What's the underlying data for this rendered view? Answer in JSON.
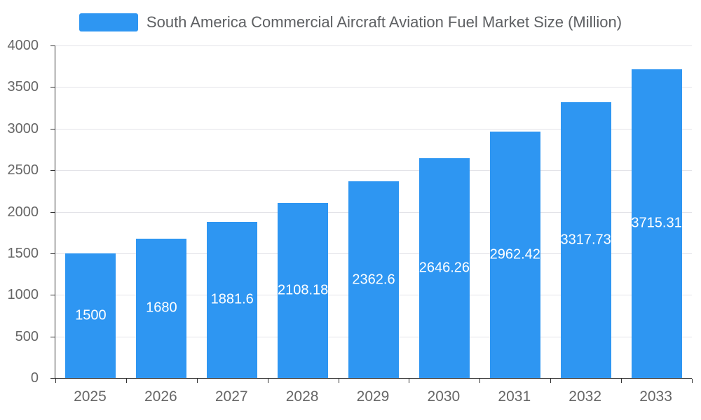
{
  "chart_data": {
    "type": "bar",
    "title": "South America Commercial Aircraft Aviation Fuel Market Size (Million)",
    "categories": [
      "2025",
      "2026",
      "2027",
      "2028",
      "2029",
      "2030",
      "2031",
      "2032",
      "2033"
    ],
    "values": [
      1500,
      1680,
      1881.6,
      2108.18,
      2362.6,
      2646.26,
      2962.42,
      3317.73,
      3715.31
    ],
    "value_labels": [
      "1500",
      "1680",
      "1881.6",
      "2108.18",
      "2362.6",
      "2646.26",
      "2962.42",
      "3317.73",
      "3715.31"
    ],
    "xlabel": "",
    "ylabel": "",
    "ylim": [
      0,
      4000
    ],
    "ytick_step": 500,
    "ytick_labels": [
      "0",
      "500",
      "1000",
      "1500",
      "2000",
      "2500",
      "3000",
      "3500",
      "4000"
    ],
    "grid": true,
    "legend_position": "top-center",
    "legend_entries": [
      "South America Commercial Aircraft Aviation Fuel Market Size (Million)"
    ],
    "bar_color": "#2e96f2",
    "bar_label_color": "#ffffff",
    "axis_text_color": "#666666",
    "title_color": "#5e6063",
    "grid_color": "#e3e3e8",
    "axis_line_color": "#333333"
  }
}
